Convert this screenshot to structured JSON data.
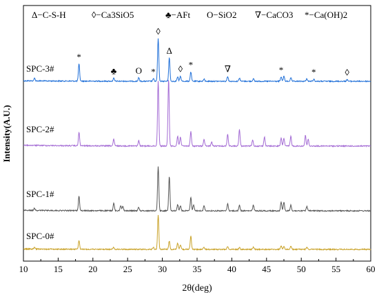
{
  "chart_data": {
    "type": "line",
    "title": "",
    "xlabel": "2θ(deg)",
    "ylabel": "Intensity(A.U.)",
    "xlim": [
      10,
      60
    ],
    "xticks": [
      "10",
      "15",
      "20",
      "25",
      "30",
      "35",
      "40",
      "45",
      "50",
      "55",
      "60"
    ],
    "grid": false,
    "y_ticks_shown": false,
    "legend": {
      "placement": "top",
      "entries": [
        "Δ−C-S-H",
        "◊−Ca3SiO5",
        "♣−AFt",
        "O−SiO2",
        "∇−CaCO3",
        "*−Ca(OH)2"
      ]
    },
    "series": [
      {
        "name": "SPC-3#",
        "color": "#1f6fd8",
        "peaks": [
          [
            11.6,
            0.06
          ],
          [
            18.0,
            0.4
          ],
          [
            23.0,
            0.07
          ],
          [
            26.6,
            0.08
          ],
          [
            28.7,
            0.06
          ],
          [
            29.4,
            1.0
          ],
          [
            31.0,
            0.55
          ],
          [
            32.2,
            0.1
          ],
          [
            32.6,
            0.12
          ],
          [
            34.1,
            0.22
          ],
          [
            36.0,
            0.05
          ],
          [
            39.4,
            0.12
          ],
          [
            41.1,
            0.08
          ],
          [
            43.1,
            0.06
          ],
          [
            47.1,
            0.1
          ],
          [
            47.5,
            0.12
          ],
          [
            48.5,
            0.08
          ],
          [
            50.8,
            0.06
          ],
          [
            51.8,
            0.05
          ],
          [
            56.6,
            0.04
          ]
        ]
      },
      {
        "name": "SPC-2#",
        "color": "#a36ad4",
        "peaks": [
          [
            18.0,
            0.2
          ],
          [
            23.0,
            0.1
          ],
          [
            26.6,
            0.08
          ],
          [
            29.4,
            1.0
          ],
          [
            30.9,
            1.02
          ],
          [
            32.2,
            0.15
          ],
          [
            32.6,
            0.14
          ],
          [
            34.1,
            0.22
          ],
          [
            36.0,
            0.1
          ],
          [
            37.1,
            0.06
          ],
          [
            39.4,
            0.18
          ],
          [
            41.1,
            0.25
          ],
          [
            43.0,
            0.09
          ],
          [
            44.7,
            0.14
          ],
          [
            47.1,
            0.12
          ],
          [
            47.5,
            0.12
          ],
          [
            48.5,
            0.15
          ],
          [
            50.6,
            0.16
          ],
          [
            51.0,
            0.1
          ]
        ]
      },
      {
        "name": "SPC-1#",
        "color": "#555555",
        "peaks": [
          [
            11.6,
            0.05
          ],
          [
            18.0,
            0.32
          ],
          [
            23.0,
            0.17
          ],
          [
            24.0,
            0.12
          ],
          [
            24.3,
            0.1
          ],
          [
            26.6,
            0.08
          ],
          [
            29.4,
            1.0
          ],
          [
            31.0,
            0.78
          ],
          [
            32.2,
            0.14
          ],
          [
            32.6,
            0.11
          ],
          [
            34.1,
            0.3
          ],
          [
            34.5,
            0.14
          ],
          [
            36.0,
            0.11
          ],
          [
            39.4,
            0.16
          ],
          [
            41.1,
            0.13
          ],
          [
            43.1,
            0.13
          ],
          [
            47.1,
            0.2
          ],
          [
            47.5,
            0.2
          ],
          [
            48.5,
            0.13
          ],
          [
            50.8,
            0.1
          ]
        ]
      },
      {
        "name": "SPC-0#",
        "color": "#c9a228",
        "peaks": [
          [
            11.6,
            0.05
          ],
          [
            18.0,
            0.24
          ],
          [
            23.0,
            0.06
          ],
          [
            28.7,
            0.06
          ],
          [
            29.4,
            1.0
          ],
          [
            31.0,
            0.25
          ],
          [
            32.2,
            0.18
          ],
          [
            32.6,
            0.14
          ],
          [
            34.1,
            0.4
          ],
          [
            36.0,
            0.06
          ],
          [
            39.4,
            0.09
          ],
          [
            41.1,
            0.06
          ],
          [
            43.1,
            0.06
          ],
          [
            47.1,
            0.1
          ],
          [
            47.5,
            0.09
          ],
          [
            48.5,
            0.09
          ],
          [
            50.8,
            0.07
          ]
        ]
      }
    ],
    "annotations": [
      {
        "symbol": "*",
        "series": "SPC-3#",
        "x": 18.0
      },
      {
        "symbol": "♣",
        "series": "SPC-3#",
        "x": 23.0
      },
      {
        "symbol": "O",
        "series": "SPC-3#",
        "x": 26.6
      },
      {
        "symbol": "*",
        "series": "SPC-3#",
        "x": 28.7
      },
      {
        "symbol": "◊",
        "series": "SPC-3#",
        "x": 29.4
      },
      {
        "symbol": "Δ",
        "series": "SPC-3#",
        "x": 31.0
      },
      {
        "symbol": "◊",
        "series": "SPC-3#",
        "x": 32.6
      },
      {
        "symbol": "*",
        "series": "SPC-3#",
        "x": 34.1
      },
      {
        "symbol": "∇",
        "series": "SPC-3#",
        "x": 39.4
      },
      {
        "symbol": "*",
        "series": "SPC-3#",
        "x": 47.1
      },
      {
        "symbol": "*",
        "series": "SPC-3#",
        "x": 51.8
      },
      {
        "symbol": "◊",
        "series": "SPC-3#",
        "x": 56.6
      }
    ]
  }
}
